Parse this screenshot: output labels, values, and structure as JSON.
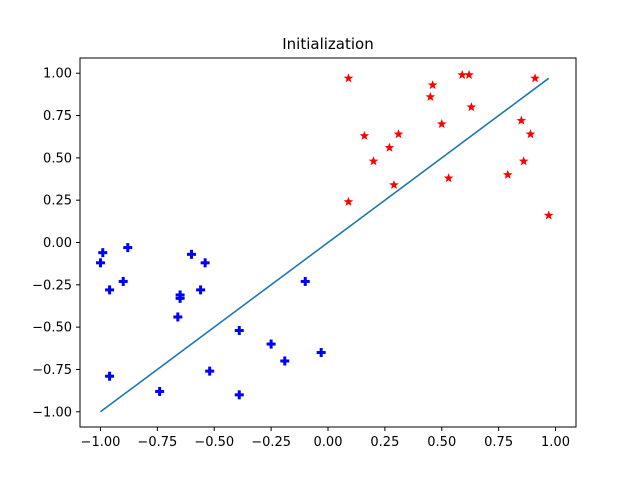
{
  "chart_data": {
    "type": "scatter",
    "title": "Initialization",
    "xlabel": "",
    "ylabel": "",
    "xlim": [
      -1.09,
      1.09
    ],
    "ylim": [
      -1.09,
      1.09
    ],
    "xticks": [
      -1.0,
      -0.75,
      -0.5,
      -0.25,
      0.0,
      0.25,
      0.5,
      0.75,
      1.0
    ],
    "yticks": [
      -1.0,
      -0.75,
      -0.5,
      -0.25,
      0.0,
      0.25,
      0.5,
      0.75,
      1.0
    ],
    "xtick_labels": [
      "−1.00",
      "−0.75",
      "−0.50",
      "−0.25",
      "0.00",
      "0.25",
      "0.50",
      "0.75",
      "1.00"
    ],
    "ytick_labels": [
      "−1.00",
      "−0.75",
      "−0.50",
      "−0.25",
      "0.00",
      "0.25",
      "0.50",
      "0.75",
      "1.00"
    ],
    "grid": false,
    "series": [
      {
        "marker": "star",
        "color": "#ff0000",
        "points": [
          [
            0.09,
            0.97
          ],
          [
            0.59,
            0.99
          ],
          [
            0.62,
            0.99
          ],
          [
            0.91,
            0.97
          ],
          [
            0.46,
            0.93
          ],
          [
            0.45,
            0.86
          ],
          [
            0.63,
            0.8
          ],
          [
            0.5,
            0.7
          ],
          [
            0.85,
            0.72
          ],
          [
            0.89,
            0.64
          ],
          [
            0.16,
            0.63
          ],
          [
            0.31,
            0.64
          ],
          [
            0.27,
            0.56
          ],
          [
            0.2,
            0.48
          ],
          [
            0.86,
            0.48
          ],
          [
            0.79,
            0.4
          ],
          [
            0.53,
            0.38
          ],
          [
            0.29,
            0.34
          ],
          [
            0.09,
            0.24
          ],
          [
            0.97,
            0.16
          ]
        ]
      },
      {
        "marker": "plus",
        "color": "#0000ff",
        "points": [
          [
            -0.99,
            -0.06
          ],
          [
            -1.0,
            -0.12
          ],
          [
            -0.88,
            -0.03
          ],
          [
            -0.6,
            -0.07
          ],
          [
            -0.54,
            -0.12
          ],
          [
            -0.9,
            -0.23
          ],
          [
            -0.96,
            -0.28
          ],
          [
            -0.65,
            -0.31
          ],
          [
            -0.65,
            -0.33
          ],
          [
            -0.56,
            -0.28
          ],
          [
            -0.1,
            -0.23
          ],
          [
            -0.66,
            -0.44
          ],
          [
            -0.39,
            -0.52
          ],
          [
            -0.25,
            -0.6
          ],
          [
            -0.19,
            -0.7
          ],
          [
            -0.03,
            -0.65
          ],
          [
            -0.96,
            -0.79
          ],
          [
            -0.52,
            -0.76
          ],
          [
            -0.74,
            -0.88
          ],
          [
            -0.39,
            -0.9
          ]
        ]
      }
    ],
    "line": {
      "color": "#1f77b4",
      "points": [
        [
          -1.0,
          -1.0
        ],
        [
          0.97,
          0.97
        ]
      ]
    }
  }
}
